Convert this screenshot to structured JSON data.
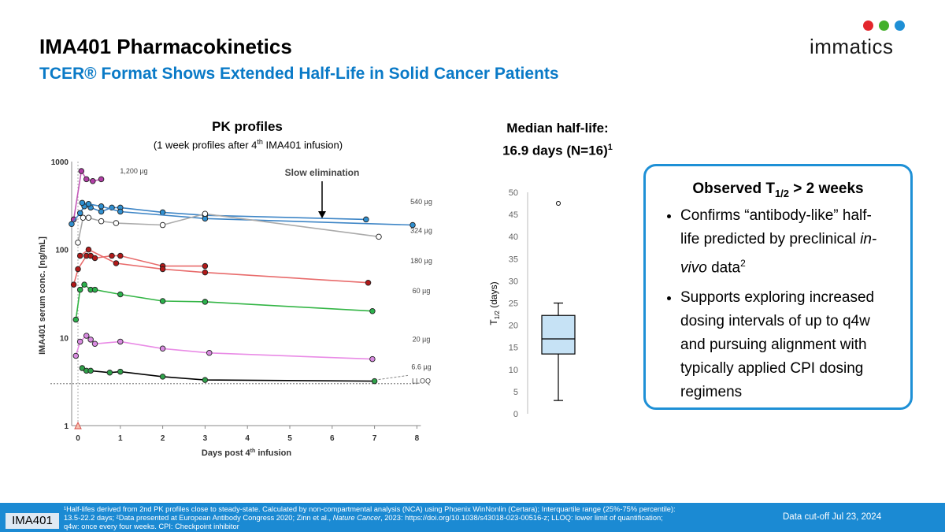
{
  "header": {
    "title": "IMA401 Pharmacokinetics",
    "subtitle": "TCER® Format Shows Extended Half-Life in Solid Cancer Patients"
  },
  "logo": {
    "text": "immatics",
    "dot_colors": [
      "#e3262c",
      "#43b02a",
      "#1e8fd5"
    ]
  },
  "pk_panel": {
    "title": "PK profiles",
    "subtitle_pre": "(1 week profiles after 4",
    "subtitle_sup": "th",
    "subtitle_post": " IMA401 infusion)",
    "annotation": "Slow elimination"
  },
  "median_panel": {
    "title_line1": "Median half-life:",
    "title_line2": "16.9 days (N=16)",
    "title_sup": "1"
  },
  "callout": {
    "heading": "Observed T",
    "heading_sub": "1/2",
    "heading_post": " > 2 weeks",
    "bullet1_a": "Confirms “antibody-like” half-life predicted by preclinical ",
    "bullet1_italic": "in-vivo",
    "bullet1_b": " data",
    "bullet1_sup": "2",
    "bullet2": "Supports exploring increased dosing intervals of up to q4w and pursuing alignment with typically applied CPI dosing regimens"
  },
  "footer": {
    "tag": "IMA401",
    "note_line1": "¹Half-lifes derived from 2nd PK profiles close to steady-state. Calculated by non-compartmental analysis (NCA) using Phoenix WinNonlin (Certara); Interquartile range (25%-75% percentile):",
    "note_line2_a": "13.5-22.2 days; ²Data presented at European Antibody Congress 2020; Zinn et al., ",
    "note_line2_italic": "Nature Cancer",
    "note_line2_b": ", 2023: https://doi.org/10.1038/s43018-023-00516-z; LLOQ: lower limit of quantification;",
    "note_line3": "q4w: once every four weeks. CPI: Checkpoint inhibitor",
    "date": "Data cut-off Jul 23, 2024"
  },
  "chart_data": [
    {
      "type": "line",
      "log_y": true,
      "ylim": [
        1,
        1000
      ],
      "xlim": [
        0,
        8
      ],
      "y_ticks": [
        1,
        10,
        100,
        1000
      ],
      "x_ticks": [
        0,
        1,
        2,
        3,
        4,
        5,
        6,
        7,
        8
      ],
      "xlabel_pre": "Days post 4",
      "xlabel_sup": "th",
      "xlabel_post": " infusion",
      "ylabel": "IMA401 serum conc. [ng/mL]",
      "lloq": {
        "label": "LLOQ",
        "value": 3.0
      },
      "series": [
        {
          "name": "1,200 µg",
          "color": "#c45ab8",
          "fill": "#b23ea6",
          "x": [
            -0.1,
            0.08,
            0.2,
            0.35,
            0.55
          ],
          "y": [
            220,
            780,
            630,
            600,
            630
          ]
        },
        {
          "name": "540 µg",
          "color": "#3d85c6",
          "fill": "#2f8fd0",
          "x": [
            -0.15,
            0.05,
            0.15,
            0.3,
            0.55,
            0.8,
            1.0,
            2.0,
            3.0,
            6.8
          ],
          "y": [
            195,
            260,
            310,
            300,
            270,
            300,
            300,
            265,
            245,
            220
          ]
        },
        {
          "name": "540 µg",
          "color": "#3d85c6",
          "fill": "#2f8fd0",
          "x": [
            0.1,
            0.25,
            0.55,
            1.0,
            3.0,
            7.9
          ],
          "y": [
            340,
            330,
            310,
            270,
            225,
            190
          ]
        },
        {
          "name": "324 µg",
          "color": "#aaaaaa",
          "fill": "#ffffff",
          "x": [
            0.0,
            0.12,
            0.25,
            0.55,
            0.9,
            2.0,
            3.0,
            7.1
          ],
          "y": [
            120,
            230,
            230,
            210,
            200,
            190,
            255,
            140
          ]
        },
        {
          "name": "180 µg",
          "color": "#e86b6b",
          "fill": "#b11919",
          "x": [
            -0.1,
            0.0,
            0.2,
            0.3,
            0.4,
            0.8,
            1.0,
            2.0,
            3.0
          ],
          "y": [
            40,
            60,
            85,
            85,
            80,
            85,
            85,
            65,
            65
          ]
        },
        {
          "name": "180 µg",
          "color": "#e86b6b",
          "fill": "#b11919",
          "x": [
            0.05,
            0.25,
            0.9,
            2.0,
            3.0,
            6.85
          ],
          "y": [
            85,
            100,
            70,
            60,
            55,
            42
          ]
        },
        {
          "name": "60 µg",
          "color": "#33b545",
          "fill": "#2bb24c",
          "x": [
            -0.05,
            0.05,
            0.15,
            0.3,
            0.4,
            1.0,
            2.0,
            3.0,
            6.95
          ],
          "y": [
            16,
            35,
            40,
            35,
            35,
            31,
            26,
            25.5,
            20
          ]
        },
        {
          "name": "20 µg",
          "color": "#e98be6",
          "fill": "#d88be0",
          "x": [
            -0.05,
            0.05,
            0.2,
            0.3,
            0.4,
            1.0,
            2.0,
            3.1,
            6.95
          ],
          "y": [
            6.2,
            9,
            10.5,
            9.5,
            8.5,
            9,
            7.5,
            6.7,
            5.7
          ]
        },
        {
          "name": "6.6 µg",
          "color": "#000000",
          "fill": "#2fa14a",
          "x": [
            0.1,
            0.2,
            0.3,
            0.75,
            1.0,
            2.0,
            3.0,
            7.0
          ],
          "y": [
            4.5,
            4.2,
            4.2,
            4.0,
            4.1,
            3.6,
            3.3,
            3.2
          ]
        }
      ],
      "start_marker": {
        "x": 0,
        "y": 1
      }
    },
    {
      "type": "box",
      "ylabel_pre": "T",
      "ylabel_sub": "1/2",
      "ylabel_post": " (days)",
      "ylim": [
        0,
        50
      ],
      "y_ticks": [
        0,
        5,
        10,
        15,
        20,
        25,
        30,
        35,
        40,
        45,
        50
      ],
      "box": {
        "min": 3,
        "q1": 13.5,
        "median": 16.9,
        "q3": 22.2,
        "max": 25,
        "outliers": [
          47.5
        ]
      },
      "n": 16
    }
  ]
}
